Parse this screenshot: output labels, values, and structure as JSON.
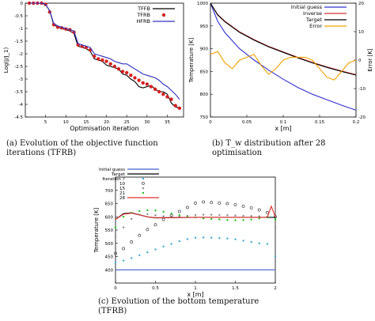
{
  "figure": {
    "captions": {
      "a": "(a) Evolution of the objective function iterations (TFRB)",
      "b": "(b) T_w distribution after 28 optimisation",
      "c": "(c) Evolution of the bottom temperature (TFRB)"
    }
  },
  "chart_data": [
    {
      "type": "line",
      "panel": "a",
      "xlabel": "Optimisation iteration",
      "ylabel": "Log(J/J_1)",
      "xlim": [
        0,
        39
      ],
      "ylim": [
        -4.5,
        0
      ],
      "x_ticks": [
        "5",
        "10",
        "15",
        "20",
        "25",
        "30",
        "35"
      ],
      "y_ticks": [
        "0",
        "-0.5",
        "-1",
        "-1.5",
        "-2",
        "-2.5",
        "-3",
        "-3.5",
        "-4",
        "-4.5"
      ],
      "legend": "top-right",
      "series": [
        {
          "name": "TFFB",
          "color": "#000000",
          "x": [
            1,
            2,
            3,
            4,
            5,
            6,
            7,
            8,
            9,
            10,
            11,
            12,
            13,
            14,
            15,
            16,
            17,
            18,
            19,
            20,
            21,
            22,
            23,
            24,
            25,
            26,
            27,
            28,
            29,
            30,
            31,
            32,
            33,
            34,
            35,
            36,
            37,
            38
          ],
          "y": [
            0,
            0,
            0,
            0,
            -0.05,
            -0.3,
            -0.85,
            -0.95,
            -1.0,
            -1.05,
            -1.1,
            -1.2,
            -1.7,
            -1.75,
            -1.8,
            -1.9,
            -2.2,
            -2.25,
            -2.3,
            -2.45,
            -2.5,
            -2.55,
            -2.6,
            -2.8,
            -2.85,
            -3.0,
            -3.1,
            -3.3,
            -3.35,
            -3.3,
            -3.25,
            -3.4,
            -3.5,
            -3.5,
            -3.6,
            -3.95,
            -4.1,
            -4.15
          ]
        },
        {
          "name": "TFRB",
          "color": "#d62020",
          "x": [
            1,
            2,
            3,
            4,
            5,
            6,
            7,
            8,
            9,
            10,
            11,
            12,
            13,
            14,
            15,
            16,
            17,
            18,
            19,
            20,
            21,
            22,
            23,
            24,
            25,
            26,
            27,
            28,
            29,
            30,
            31,
            32,
            33,
            34,
            35,
            36,
            37,
            38
          ],
          "y": [
            0,
            0,
            0,
            0,
            -0.05,
            -0.35,
            -0.85,
            -0.95,
            -0.98,
            -1.02,
            -1.05,
            -1.15,
            -1.65,
            -1.7,
            -1.75,
            -1.85,
            -2.1,
            -2.2,
            -2.25,
            -2.3,
            -2.4,
            -2.5,
            -2.6,
            -2.7,
            -2.75,
            -2.85,
            -2.95,
            -3.05,
            -3.15,
            -3.2,
            -3.3,
            -3.4,
            -3.5,
            -3.6,
            -3.7,
            -3.8,
            -4.05,
            -4.15
          ]
        },
        {
          "name": "HFRB",
          "color": "#3030c0",
          "x": [
            1,
            2,
            3,
            4,
            5,
            6,
            7,
            8,
            9,
            10,
            11,
            12,
            13,
            14,
            15,
            16,
            17,
            18,
            19,
            20,
            21,
            22,
            23,
            24,
            25,
            26,
            27,
            28,
            29,
            30,
            31,
            32,
            33,
            34,
            35,
            36,
            37,
            38
          ],
          "y": [
            0,
            0,
            0,
            0,
            -0.05,
            -0.3,
            -0.8,
            -0.9,
            -0.95,
            -1.0,
            -1.05,
            -1.1,
            -1.6,
            -1.65,
            -1.7,
            -1.75,
            -2.0,
            -2.05,
            -2.1,
            -2.15,
            -2.2,
            -2.3,
            -2.35,
            -2.4,
            -2.4,
            -2.5,
            -2.6,
            -2.7,
            -2.8,
            -2.85,
            -2.9,
            -2.95,
            -3.05,
            -3.2,
            -3.3,
            -3.45,
            -3.6,
            -3.8
          ]
        }
      ]
    },
    {
      "type": "line",
      "panel": "b",
      "xlabel": "x [m]",
      "ylabel": "Temperature [K]",
      "y2label": "Error [K]",
      "xlim": [
        0,
        0.2
      ],
      "ylim": [
        750,
        1000
      ],
      "y2lim": [
        -20,
        20
      ],
      "x_ticks": [
        "0",
        "0.05",
        "0.1",
        "0.15",
        "0.2"
      ],
      "y_ticks": [
        "1000",
        "950",
        "900",
        "850",
        "800",
        "750"
      ],
      "y2_ticks": [
        "20",
        "10",
        "0",
        "-10",
        "-20"
      ],
      "legend": "top-right",
      "series": [
        {
          "name": "Initial guess",
          "color": "#3030d0",
          "x": [
            0,
            0.01,
            0.02,
            0.04,
            0.06,
            0.08,
            0.1,
            0.12,
            0.14,
            0.16,
            0.18,
            0.2
          ],
          "y": [
            1000,
            960,
            935,
            900,
            875,
            853,
            833,
            815,
            800,
            788,
            776,
            765
          ]
        },
        {
          "name": "Inverse",
          "color": "#d03030",
          "x": [
            0,
            0.01,
            0.02,
            0.04,
            0.06,
            0.08,
            0.1,
            0.12,
            0.14,
            0.16,
            0.18,
            0.2
          ],
          "y": [
            1000,
            975,
            960,
            937,
            920,
            905,
            893,
            881,
            870,
            860,
            851,
            843
          ]
        },
        {
          "name": "Target",
          "color": "#000000",
          "x": [
            0,
            0.01,
            0.02,
            0.04,
            0.06,
            0.08,
            0.1,
            0.12,
            0.14,
            0.16,
            0.18,
            0.2
          ],
          "y": [
            1000,
            974,
            959,
            936,
            919,
            904,
            892,
            880,
            869,
            859,
            850,
            842
          ]
        },
        {
          "name": "Error",
          "color": "#f0a000",
          "axis": "right",
          "x": [
            0,
            0.01,
            0.02,
            0.03,
            0.04,
            0.05,
            0.06,
            0.07,
            0.08,
            0.09,
            0.1,
            0.11,
            0.12,
            0.13,
            0.14,
            0.15,
            0.16,
            0.17,
            0.18,
            0.19,
            0.2
          ],
          "y": [
            2,
            3,
            -1,
            -3,
            0,
            1,
            2,
            -2,
            -5,
            -3,
            0,
            1,
            1,
            1,
            0,
            -3,
            -6,
            -7,
            -4,
            -1,
            0
          ]
        }
      ]
    },
    {
      "type": "scatter",
      "panel": "c",
      "xlabel": "x [m]",
      "ylabel": "Temperature [K]",
      "xlim": [
        0,
        2
      ],
      "ylim": [
        350,
        750
      ],
      "x_ticks": [
        "0",
        "0.5",
        "1",
        "1.5",
        "2"
      ],
      "y_ticks": [
        "700",
        "650",
        "600",
        "550",
        "500",
        "450",
        "400"
      ],
      "legend": "top-left",
      "series": [
        {
          "name": "Initial guess",
          "color": "#4060d0",
          "style": "line",
          "x": [
            0,
            2
          ],
          "y": [
            400,
            400
          ]
        },
        {
          "name": "Target",
          "color": "#000000",
          "style": "line",
          "x": [
            0,
            0.1,
            0.2,
            0.3,
            0.4,
            0.5,
            0.7,
            1.0,
            1.3,
            1.6,
            1.9,
            2.0
          ],
          "y": [
            590,
            612,
            615,
            608,
            600,
            596,
            597,
            598,
            598,
            598,
            598,
            598
          ]
        },
        {
          "name": "Iteration 7",
          "color": "#40a8d8",
          "style": "dots",
          "x": [
            0,
            0.1,
            0.2,
            0.3,
            0.4,
            0.5,
            0.6,
            0.7,
            0.8,
            0.9,
            1.0,
            1.1,
            1.2,
            1.3,
            1.4,
            1.5,
            1.6,
            1.7,
            1.8,
            1.9,
            2.0
          ],
          "y": [
            428,
            435,
            444,
            455,
            466,
            477,
            488,
            498,
            508,
            516,
            521,
            522,
            521,
            520,
            518,
            515,
            510,
            505,
            500,
            498,
            450
          ]
        },
        {
          "name": "10",
          "color": "#202020",
          "style": "circles",
          "x": [
            0,
            0.1,
            0.2,
            0.3,
            0.4,
            0.5,
            0.6,
            0.7,
            0.8,
            0.9,
            1.0,
            1.1,
            1.2,
            1.3,
            1.4,
            1.5,
            1.6,
            1.7,
            1.8,
            1.9,
            2.0
          ],
          "y": [
            462,
            480,
            505,
            530,
            552,
            570,
            590,
            605,
            620,
            635,
            652,
            656,
            654,
            652,
            650,
            646,
            640,
            634,
            626,
            616,
            600
          ]
        },
        {
          "name": "15",
          "color": "#8a8a8a",
          "style": "dots",
          "x": [
            0,
            0.1,
            0.2,
            0.3,
            0.4,
            0.5,
            0.6,
            0.7,
            0.8,
            0.9,
            1.0,
            1.1,
            1.2,
            1.3,
            1.4,
            1.5,
            1.6,
            1.7,
            1.8,
            1.9,
            2.0
          ],
          "y": [
            525,
            560,
            592,
            608,
            610,
            606,
            602,
            601,
            602,
            604,
            607,
            608,
            608,
            607,
            606,
            605,
            604,
            603,
            602,
            601,
            560
          ]
        },
        {
          "name": "21",
          "color": "#20c020",
          "style": "dots",
          "x": [
            0,
            0.1,
            0.2,
            0.3,
            0.4,
            0.5,
            0.6,
            0.7,
            0.8,
            0.9,
            1.0,
            1.1,
            1.2,
            1.3,
            1.4,
            1.5,
            1.6,
            1.7,
            1.8,
            1.9,
            2.0
          ],
          "y": [
            560,
            600,
            615,
            622,
            625,
            624,
            619,
            612,
            606,
            600,
            598,
            594,
            592,
            590,
            588,
            587,
            588,
            590,
            594,
            598,
            590
          ]
        },
        {
          "name": "28",
          "color": "#e03030",
          "style": "line",
          "x": [
            0,
            0.1,
            0.2,
            0.3,
            0.4,
            0.5,
            0.6,
            0.8,
            1.0,
            1.2,
            1.4,
            1.6,
            1.8,
            1.9,
            1.95,
            2.0
          ],
          "y": [
            590,
            610,
            614,
            607,
            600,
            597,
            597,
            598,
            598,
            598,
            598,
            598,
            598,
            598,
            640,
            600
          ]
        }
      ]
    }
  ]
}
